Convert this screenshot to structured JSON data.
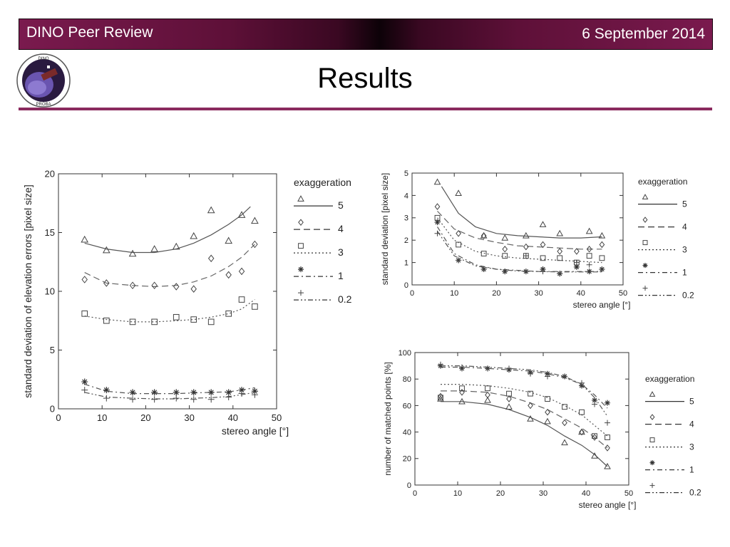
{
  "header": {
    "left_label": "DINO Peer Review",
    "right_label": "6 September 2014",
    "title": "Results"
  },
  "colors": {
    "accent": "#8a2a5e",
    "banner": "#7a1a4e"
  },
  "logo": {
    "icon": "dino-mission-logo-icon",
    "text_top": "DINO",
    "text_bottom": "PROBA"
  },
  "legend_title": "exaggeration",
  "chart_data": [
    {
      "id": "elevation-errors",
      "type": "scatter",
      "xlabel": "stereo angle [°]",
      "ylabel": "standard deviation of elevation errors [pixel size]",
      "xlim": [
        0,
        50
      ],
      "ylim": [
        0,
        20
      ],
      "xticks": [
        0,
        10,
        20,
        30,
        40,
        50
      ],
      "yticks": [
        0,
        5,
        10,
        15,
        20
      ],
      "grid": false,
      "legend_position": "right",
      "series": [
        {
          "name": "5",
          "marker": "triangle",
          "line": "solid",
          "x": [
            6,
            11,
            17,
            22,
            27,
            31,
            35,
            39,
            42,
            45
          ],
          "y": [
            14.4,
            13.5,
            13.2,
            13.6,
            13.8,
            14.7,
            16.9,
            14.3,
            16.5,
            16
          ],
          "fit_x": [
            6,
            11,
            17,
            22,
            27,
            31,
            35,
            39,
            42,
            44
          ],
          "fit_y": [
            14.1,
            13.6,
            13.3,
            13.3,
            13.6,
            14.1,
            14.8,
            15.7,
            16.5,
            17.2
          ]
        },
        {
          "name": "4",
          "marker": "diamond",
          "line": "longdash",
          "x": [
            6,
            11,
            17,
            22,
            27,
            31,
            35,
            39,
            42,
            45
          ],
          "y": [
            11,
            10.7,
            10.5,
            10.5,
            10.4,
            10.2,
            12.8,
            11.4,
            11.7,
            14
          ],
          "fit_x": [
            6,
            11,
            17,
            22,
            27,
            31,
            35,
            39,
            42,
            45
          ],
          "fit_y": [
            11.6,
            10.7,
            10.5,
            10.4,
            10.5,
            10.8,
            11.3,
            12.1,
            12.9,
            14
          ]
        },
        {
          "name": "3",
          "marker": "square",
          "line": "dotted",
          "x": [
            6,
            11,
            17,
            22,
            27,
            31,
            35,
            39,
            42,
            45
          ],
          "y": [
            8.1,
            7.5,
            7.4,
            7.4,
            7.8,
            7.6,
            7.4,
            8.1,
            9.3,
            8.7
          ],
          "fit_x": [
            6,
            11,
            17,
            22,
            27,
            31,
            35,
            39,
            42,
            45
          ],
          "fit_y": [
            7.9,
            7.6,
            7.4,
            7.4,
            7.5,
            7.6,
            7.8,
            8.1,
            8.5,
            9.3
          ]
        },
        {
          "name": "1",
          "marker": "asterisk",
          "line": "dashdot",
          "x": [
            6,
            11,
            17,
            22,
            27,
            31,
            35,
            39,
            42,
            45
          ],
          "y": [
            2.3,
            1.6,
            1.4,
            1.4,
            1.4,
            1.4,
            1.4,
            1.4,
            1.6,
            1.5
          ],
          "fit_x": [
            6,
            11,
            17,
            22,
            27,
            31,
            35,
            39,
            42,
            45
          ],
          "fit_y": [
            2.1,
            1.5,
            1.3,
            1.3,
            1.3,
            1.35,
            1.4,
            1.45,
            1.6,
            1.8
          ]
        },
        {
          "name": "0.2",
          "marker": "plus",
          "line": "dashdotdot",
          "x": [
            6,
            11,
            17,
            22,
            27,
            31,
            35,
            39,
            42,
            45
          ],
          "y": [
            1.6,
            0.9,
            0.8,
            0.8,
            0.9,
            0.8,
            0.8,
            1.0,
            1.3,
            1.2
          ],
          "fit_x": [
            6,
            11,
            17,
            22,
            27,
            31,
            35,
            39,
            42,
            45
          ],
          "fit_y": [
            1.4,
            1.0,
            0.9,
            0.85,
            0.85,
            0.9,
            0.95,
            1.05,
            1.2,
            1.4
          ]
        }
      ]
    },
    {
      "id": "std-deviation",
      "type": "scatter",
      "xlabel": "stereo angle [°]",
      "ylabel": "standard deviation [pixel size]",
      "xlim": [
        0,
        50
      ],
      "ylim": [
        0,
        5
      ],
      "xticks": [
        0,
        10,
        20,
        30,
        40,
        50
      ],
      "yticks": [
        0,
        1,
        2,
        3,
        4,
        5
      ],
      "grid": false,
      "legend_position": "right",
      "series": [
        {
          "name": "5",
          "marker": "triangle",
          "line": "solid",
          "x": [
            6,
            11,
            17,
            22,
            27,
            31,
            35,
            42,
            45
          ],
          "y": [
            4.6,
            4.1,
            2.2,
            2.1,
            2.2,
            2.7,
            2.3,
            2.4,
            2.2
          ],
          "fit_x": [
            7,
            11,
            15,
            20,
            25,
            30,
            35,
            40,
            45
          ],
          "fit_y": [
            4.4,
            3.2,
            2.6,
            2.3,
            2.2,
            2.15,
            2.1,
            2.1,
            2.15
          ]
        },
        {
          "name": "4",
          "marker": "diamond",
          "line": "longdash",
          "x": [
            6,
            11,
            17,
            22,
            27,
            31,
            35,
            39,
            42,
            45
          ],
          "y": [
            3.5,
            2.3,
            2.2,
            1.6,
            1.7,
            1.8,
            1.5,
            1.5,
            1.6,
            1.8
          ],
          "fit_x": [
            6,
            10,
            15,
            20,
            25,
            30,
            35,
            40,
            45
          ],
          "fit_y": [
            3.3,
            2.5,
            2.1,
            1.9,
            1.75,
            1.7,
            1.65,
            1.6,
            1.6
          ]
        },
        {
          "name": "3",
          "marker": "square",
          "line": "dotted",
          "x": [
            6,
            11,
            17,
            22,
            27,
            31,
            35,
            39,
            42,
            45
          ],
          "y": [
            3.0,
            1.8,
            1.4,
            1.3,
            1.3,
            1.2,
            1.2,
            1.0,
            1.3,
            1.2
          ],
          "fit_x": [
            6,
            10,
            15,
            20,
            25,
            30,
            35,
            40,
            45
          ],
          "fit_y": [
            3.0,
            2.0,
            1.5,
            1.3,
            1.2,
            1.15,
            1.1,
            1.05,
            1.0
          ]
        },
        {
          "name": "1",
          "marker": "asterisk",
          "line": "dashdot",
          "x": [
            6,
            11,
            17,
            22,
            27,
            31,
            35,
            39,
            42,
            45
          ],
          "y": [
            2.8,
            1.1,
            0.7,
            0.6,
            0.6,
            0.7,
            0.5,
            0.8,
            0.6,
            0.7
          ],
          "fit_x": [
            6,
            10,
            15,
            20,
            25,
            30,
            35,
            40,
            45
          ],
          "fit_y": [
            2.6,
            1.4,
            0.9,
            0.7,
            0.65,
            0.6,
            0.6,
            0.6,
            0.6
          ]
        },
        {
          "name": "0.2",
          "marker": "plus",
          "line": "dashdotdot",
          "x": [
            6,
            11,
            17,
            22,
            27,
            31,
            35,
            39,
            42,
            45
          ],
          "y": [
            2.3,
            1.1,
            0.7,
            0.6,
            1.3,
            0.6,
            0.5,
            1.0,
            0.9,
            0.7
          ],
          "fit_x": [
            6,
            10,
            15,
            20,
            25,
            30,
            35,
            40,
            45
          ],
          "fit_y": [
            2.4,
            1.3,
            0.85,
            0.7,
            0.62,
            0.6,
            0.58,
            0.58,
            0.58
          ]
        }
      ]
    },
    {
      "id": "matched-points",
      "type": "scatter",
      "xlabel": "stereo angle [°]",
      "ylabel": "number of matched points [%]",
      "xlim": [
        0,
        50
      ],
      "ylim": [
        0,
        100
      ],
      "xticks": [
        0,
        10,
        20,
        30,
        40,
        50
      ],
      "yticks": [
        0,
        20,
        40,
        60,
        80,
        100
      ],
      "grid": false,
      "legend_position": "right",
      "series": [
        {
          "name": "5",
          "marker": "triangle",
          "line": "solid",
          "x": [
            6,
            11,
            17,
            22,
            27,
            31,
            35,
            39,
            42,
            45
          ],
          "y": [
            65,
            63,
            64,
            59,
            50,
            48,
            32,
            40,
            22,
            14
          ],
          "fit_x": [
            6,
            11,
            17,
            22,
            27,
            31,
            35,
            39,
            42,
            45
          ],
          "fit_y": [
            63,
            63,
            61,
            57,
            51,
            45,
            37,
            30,
            23,
            14
          ]
        },
        {
          "name": "4",
          "marker": "diamond",
          "line": "longdash",
          "x": [
            6,
            11,
            17,
            22,
            27,
            31,
            35,
            39,
            42,
            45
          ],
          "y": [
            67,
            70,
            68,
            65,
            60,
            55,
            47,
            40,
            36,
            28
          ],
          "fit_x": [
            6,
            11,
            17,
            22,
            27,
            31,
            35,
            39,
            42,
            45
          ],
          "fit_y": [
            71,
            71,
            70,
            67,
            62,
            57,
            50,
            43,
            36,
            28
          ]
        },
        {
          "name": "3",
          "marker": "square",
          "line": "dotted",
          "x": [
            6,
            11,
            17,
            22,
            27,
            31,
            35,
            39,
            42,
            45
          ],
          "y": [
            66,
            73,
            73,
            69,
            69,
            65,
            59,
            55,
            37,
            36
          ],
          "fit_x": [
            6,
            11,
            17,
            22,
            27,
            31,
            35,
            39,
            42,
            45
          ],
          "fit_y": [
            76,
            76,
            75,
            73,
            70,
            66,
            60,
            53,
            45,
            37
          ]
        },
        {
          "name": "1",
          "marker": "asterisk",
          "line": "dashdot",
          "x": [
            6,
            11,
            17,
            22,
            27,
            31,
            35,
            39,
            42,
            45
          ],
          "y": [
            90,
            88,
            88,
            87,
            85,
            84,
            82,
            75,
            64,
            62
          ],
          "fit_x": [
            6,
            11,
            17,
            22,
            27,
            31,
            35,
            39,
            42,
            45
          ],
          "fit_y": [
            89,
            89,
            88,
            87,
            86,
            84,
            81,
            76,
            68,
            58
          ]
        },
        {
          "name": "0.2",
          "marker": "plus",
          "line": "dashdotdot",
          "x": [
            6,
            11,
            17,
            22,
            27,
            31,
            35,
            39,
            42,
            45
          ],
          "y": [
            91,
            89,
            88,
            88,
            84,
            82,
            82,
            77,
            61,
            47
          ],
          "fit_x": [
            6,
            11,
            17,
            22,
            27,
            31,
            35,
            39,
            42,
            45
          ],
          "fit_y": [
            90,
            90,
            89,
            88,
            87,
            85,
            82,
            76,
            66,
            52
          ]
        }
      ]
    }
  ]
}
